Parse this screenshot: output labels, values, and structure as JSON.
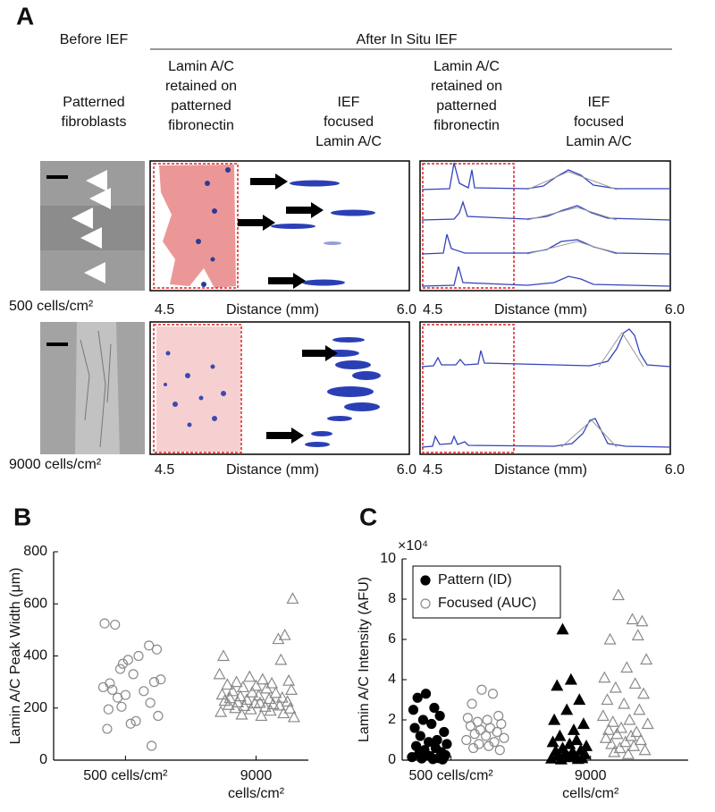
{
  "panel_a": {
    "label": "A",
    "before": "Before IEF",
    "after": "After In Situ IEF",
    "col_fibroblasts": [
      "Patterned",
      "fibroblasts"
    ],
    "col_retained": [
      "Lamin A/C",
      "retained on",
      "patterned",
      "fibronectin"
    ],
    "col_focused": [
      "IEF",
      "focused",
      "Lamin A/C"
    ],
    "rows": [
      {
        "density": "500 cells/cm²"
      },
      {
        "density": "9000 cells/cm²"
      }
    ],
    "axis": {
      "start": "4.5",
      "title": "Distance (mm)",
      "end": "6.0"
    }
  },
  "chart_data": [
    {
      "type": "scatter",
      "panel_label": "B",
      "y_label": "Lamin A/C Peak Width (μm)",
      "xlim": [
        0.45,
        2.4
      ],
      "xticks": [
        {
          "value": 1,
          "label": "500 cells/cm²"
        },
        {
          "value": 2,
          "label": "9000 cells/cm²"
        }
      ],
      "ylim": [
        0,
        800
      ],
      "yticks": [
        0,
        200,
        400,
        600,
        800
      ],
      "category_markers": [
        "circle",
        "triangle"
      ],
      "series": [
        {
          "color": "#8a8a8a",
          "filled": false,
          "x": [
            0.84,
            0.92,
            1.18,
            1.24,
            1.1,
            1.02,
            0.98,
            0.96,
            1.06,
            1.27,
            1.22,
            0.88,
            0.83,
            0.9,
            1.14,
            1.0,
            0.94,
            1.19,
            0.97,
            0.87,
            1.25,
            1.08,
            1.04,
            0.86,
            1.2,
            2.28,
            2.22,
            2.17,
            1.75,
            2.19,
            1.72,
            1.95,
            2.05,
            2.25,
            1.85,
            2.12,
            1.78,
            2.0,
            1.9,
            2.08,
            2.27,
            1.82,
            1.97,
            2.15,
            1.74,
            2.02,
            1.88,
            2.2,
            1.8,
            2.1,
            1.93,
            1.76,
            2.24,
            1.86,
            2.03,
            1.99,
            2.13,
            1.79,
            2.18,
            1.91,
            2.07,
            1.84,
            2.26,
            1.96,
            2.11,
            1.73,
            2.21,
            1.89,
            2.04,
            2.29
          ],
          "values": [
            525,
            520,
            440,
            425,
            400,
            385,
            370,
            350,
            330,
            310,
            300,
            295,
            280,
            270,
            265,
            250,
            240,
            220,
            205,
            195,
            170,
            150,
            140,
            120,
            55,
            620,
            480,
            465,
            400,
            385,
            330,
            320,
            310,
            305,
            300,
            295,
            290,
            285,
            280,
            275,
            270,
            265,
            260,
            258,
            252,
            248,
            245,
            240,
            238,
            235,
            232,
            228,
            225,
            222,
            220,
            218,
            215,
            212,
            210,
            208,
            205,
            200,
            198,
            195,
            190,
            185,
            180,
            175,
            170,
            165
          ]
        }
      ]
    },
    {
      "type": "scatter",
      "panel_label": "C",
      "y_label": "Lamin A/C Intensity (AFU)",
      "y_multiplier": "×10⁴",
      "xlim": [
        0.65,
        2.7
      ],
      "xticks": [
        {
          "value": 1,
          "label": "500 cells/cm²"
        },
        {
          "value": 2,
          "label": "9000 cells/cm²"
        }
      ],
      "ylim": [
        0,
        100000
      ],
      "yticks": [
        0,
        {
          "value": 20000,
          "label": "2"
        },
        {
          "value": 40000,
          "label": "4"
        },
        {
          "value": 60000,
          "label": "6"
        },
        {
          "value": 80000,
          "label": "8"
        },
        {
          "value": 100000,
          "label": "10"
        }
      ],
      "legend": "top-left",
      "category_markers": [
        "circle",
        "triangle"
      ],
      "series": [
        {
          "name": "Pattern (ID)",
          "color": "#000000",
          "filled": true,
          "x": [
            0.82,
            0.76,
            0.88,
            0.73,
            0.92,
            0.8,
            0.86,
            0.74,
            0.95,
            0.78,
            0.9,
            0.84,
            0.97,
            0.75,
            0.89,
            0.81,
            0.93,
            0.77,
            0.96,
            0.85,
            0.72,
            0.91,
            0.79,
            0.87,
            0.94,
            1.8,
            1.86,
            1.76,
            1.92,
            1.83,
            1.74,
            1.95,
            1.88,
            1.78,
            1.9,
            1.73,
            1.85,
            1.97,
            1.8,
            1.93,
            1.75,
            1.87,
            1.82,
            1.96,
            1.77,
            1.89,
            1.84,
            1.94,
            1.72,
            1.91,
            1.79
          ],
          "values": [
            33000,
            31000,
            26000,
            25000,
            22000,
            20000,
            18000,
            16000,
            14000,
            12000,
            10000,
            9000,
            8000,
            7000,
            6000,
            5000,
            4000,
            3000,
            2500,
            2000,
            1500,
            1000,
            800,
            500,
            300,
            65000,
            40000,
            37000,
            30000,
            25000,
            20000,
            18000,
            15000,
            12000,
            10000,
            9000,
            8000,
            7000,
            6000,
            5000,
            4500,
            4000,
            3500,
            3000,
            2500,
            2000,
            1500,
            1000,
            800,
            600,
            400
          ]
        },
        {
          "name": "Focused (AUC)",
          "color": "#8a8a8a",
          "filled": false,
          "x": [
            1.22,
            1.3,
            1.15,
            1.34,
            1.12,
            1.26,
            1.19,
            1.36,
            1.14,
            1.28,
            1.21,
            1.33,
            1.17,
            1.25,
            1.38,
            1.11,
            1.31,
            1.2,
            1.27,
            1.16,
            1.35,
            2.2,
            2.3,
            2.37,
            2.34,
            2.14,
            2.4,
            2.26,
            2.1,
            2.32,
            2.18,
            2.38,
            2.12,
            2.24,
            2.35,
            2.09,
            2.28,
            2.16,
            2.41,
            2.22,
            2.13,
            2.33,
            2.19,
            2.29,
            2.11,
            2.36,
            2.25,
            2.15,
            2.31,
            2.21,
            2.39,
            2.17,
            2.27
          ],
          "values": [
            35000,
            33000,
            28000,
            22000,
            21000,
            20000,
            19000,
            18000,
            17000,
            16000,
            15000,
            14000,
            13000,
            12000,
            11000,
            10000,
            9000,
            8000,
            7000,
            6000,
            5000,
            82000,
            70000,
            69000,
            62000,
            60000,
            50000,
            46000,
            41000,
            38000,
            36000,
            33000,
            30000,
            28000,
            25000,
            22000,
            20000,
            19000,
            18000,
            16000,
            15000,
            14000,
            13000,
            12000,
            11000,
            10000,
            9000,
            8000,
            7000,
            6000,
            5000,
            4000,
            3000
          ]
        }
      ]
    }
  ]
}
